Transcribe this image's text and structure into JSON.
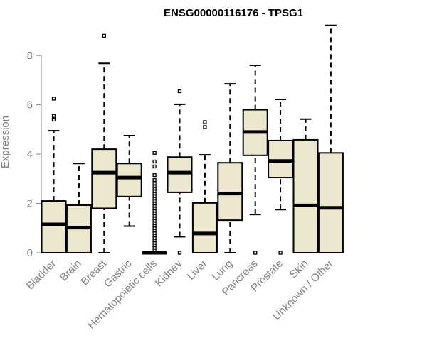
{
  "chart_data": {
    "type": "box",
    "title": "ENSG00000116176 - TPSG1",
    "xlabel": "",
    "ylabel": "Expression",
    "ylim": [
      0,
      9.3
    ],
    "yticks": [
      0,
      2,
      4,
      6,
      8
    ],
    "colors": {
      "box_fill": "#ede7cf",
      "stroke": "#000000",
      "axis": "#808080"
    },
    "categories": [
      "Bladder",
      "Brain",
      "Breast",
      "Gastric",
      "Hematopoietic cells",
      "Kidney",
      "Liver",
      "Lung",
      "Pancreas",
      "Prostate",
      "Skin",
      "Unknown / Other"
    ],
    "boxes": [
      {
        "category": "Bladder",
        "whisker_low": 0,
        "q1": 0,
        "median": 1.15,
        "q3": 2.1,
        "whisker_high": 4.95,
        "outliers": [
          5.4,
          5.55,
          6.25
        ]
      },
      {
        "category": "Brain",
        "whisker_low": 0,
        "q1": 0,
        "median": 1.02,
        "q3": 1.93,
        "whisker_high": 3.62,
        "outliers": []
      },
      {
        "category": "Breast",
        "whisker_low": 0,
        "q1": 1.8,
        "median": 3.25,
        "q3": 4.2,
        "whisker_high": 7.68,
        "outliers": [
          8.8
        ]
      },
      {
        "category": "Gastric",
        "whisker_low": 1.08,
        "q1": 2.28,
        "median": 3.05,
        "q3": 3.62,
        "whisker_high": 4.75,
        "outliers": []
      },
      {
        "category": "Hematopoietic cells",
        "whisker_low": 0,
        "q1": 0,
        "median": 0,
        "q3": 0,
        "whisker_high": 0,
        "outliers": [
          0.1,
          0.2,
          0.3,
          0.4,
          0.5,
          0.6,
          0.7,
          0.8,
          0.9,
          1.0,
          1.1,
          1.2,
          1.3,
          1.4,
          1.5,
          1.6,
          1.7,
          1.8,
          1.9,
          2.0,
          2.1,
          2.2,
          2.3,
          2.4,
          2.5,
          2.6,
          2.7,
          2.8,
          2.95,
          3.15,
          3.5,
          3.7,
          4.05
        ]
      },
      {
        "category": "Kidney",
        "whisker_low": 0.65,
        "q1": 2.45,
        "median": 3.25,
        "q3": 3.88,
        "whisker_high": 6.02,
        "outliers": [
          0,
          6.55
        ]
      },
      {
        "category": "Liver",
        "whisker_low": 0,
        "q1": 0,
        "median": 0.78,
        "q3": 2.02,
        "whisker_high": 3.97,
        "outliers": [
          5.1,
          5.3
        ]
      },
      {
        "category": "Lung",
        "whisker_low": 0,
        "q1": 1.32,
        "median": 2.4,
        "q3": 3.65,
        "whisker_high": 6.85,
        "outliers": []
      },
      {
        "category": "Pancreas",
        "whisker_low": 1.55,
        "q1": 3.95,
        "median": 4.9,
        "q3": 5.8,
        "whisker_high": 7.6,
        "outliers": [
          0
        ]
      },
      {
        "category": "Prostate",
        "whisker_low": 1.75,
        "q1": 3.05,
        "median": 3.72,
        "q3": 4.55,
        "whisker_high": 6.22,
        "outliers": [
          0
        ]
      },
      {
        "category": "Skin",
        "whisker_low": 0,
        "q1": 0,
        "median": 1.92,
        "q3": 4.58,
        "whisker_high": 5.42,
        "outliers": []
      },
      {
        "category": "Unknown / Other",
        "whisker_low": 0,
        "q1": 0,
        "median": 1.82,
        "q3": 4.05,
        "whisker_high": 9.22,
        "outliers": []
      }
    ]
  }
}
